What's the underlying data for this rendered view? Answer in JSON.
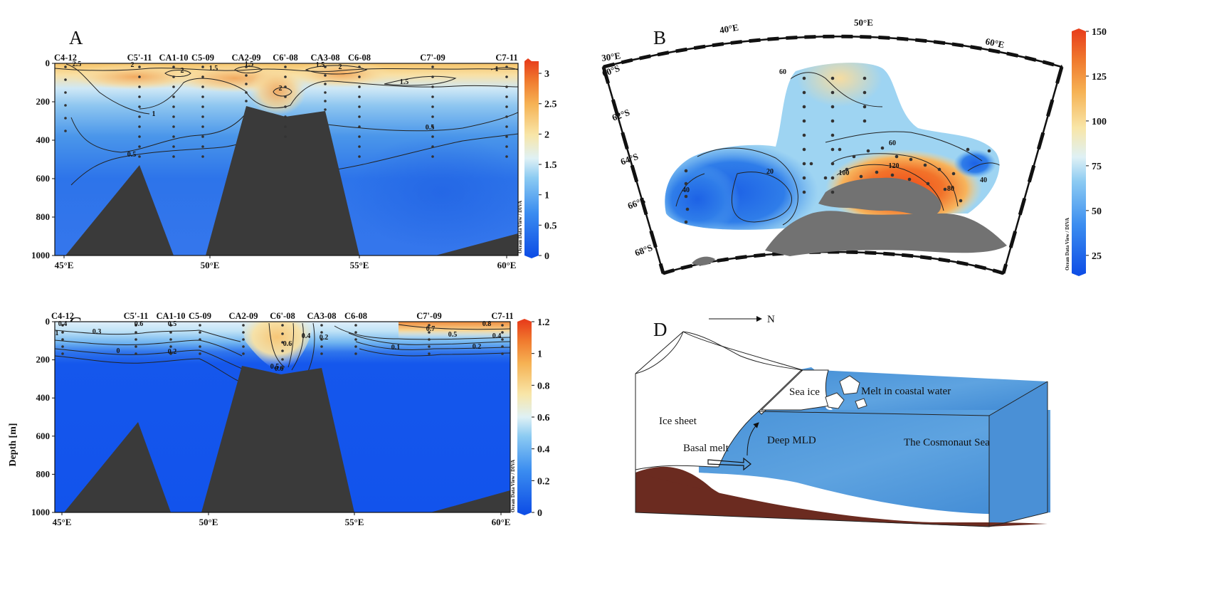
{
  "panels": {
    "a": {
      "label": "A"
    },
    "b": {
      "label": "B"
    },
    "c": {
      "label": "C"
    },
    "d": {
      "label": "D"
    }
  },
  "chart_data": [
    {
      "id": "A",
      "type": "heatmap",
      "title": "",
      "stations": [
        "C4-12",
        "C5'-11",
        "CA1-10",
        "C5-09",
        "CA2-09",
        "C6'-08",
        "CA3-08",
        "C6-08",
        "C7'-09",
        "C7-11"
      ],
      "x_ticks": [
        "45°E",
        "50°E",
        "55°E",
        "60°E"
      ],
      "y_ticks": [
        "0",
        "200",
        "400",
        "600",
        "800",
        "1000"
      ],
      "ylim": [
        1000,
        0
      ],
      "contour_labels": [
        "2.5",
        "2",
        "2",
        "2",
        "1.5",
        "1.5",
        "1.5",
        "1.5",
        "1",
        "1",
        "0.5",
        "0.5",
        "2"
      ],
      "colorbar": {
        "ticks": [
          "3",
          "2.5",
          "2",
          "1.5",
          "1",
          "0.5",
          "0"
        ],
        "range": [
          0,
          3.2
        ],
        "credit": "Ocean Data View / DIVA"
      }
    },
    {
      "id": "B",
      "type": "heatmap",
      "title": "",
      "lon_ticks": [
        "30°E",
        "40°E",
        "50°E",
        "60°E"
      ],
      "lat_ticks": [
        "60°S",
        "62°S",
        "64°S",
        "66°S",
        "68°S"
      ],
      "contour_labels": [
        "60",
        "60",
        "20",
        "40",
        "100",
        "120",
        "80",
        "40"
      ],
      "colorbar": {
        "ticks": [
          "150",
          "125",
          "100",
          "75",
          "50",
          "25"
        ],
        "range": [
          15,
          150
        ],
        "credit": "Ocean Data View / DIVA"
      }
    },
    {
      "id": "C",
      "type": "heatmap",
      "title": "",
      "ylabel": "Depth [m]",
      "stations": [
        "C4-12",
        "C5'-11",
        "CA1-10",
        "C5-09",
        "CA2-09",
        "C6'-08",
        "CA3-08",
        "C6-08",
        "C7'-09",
        "C7-11"
      ],
      "x_ticks": [
        "45°E",
        "50°E",
        "55°E",
        "60°E"
      ],
      "y_ticks": [
        "0",
        "200",
        "400",
        "600",
        "800",
        "1000"
      ],
      "ylim": [
        1000,
        0
      ],
      "contour_labels": [
        "0.4",
        "1",
        "0.3",
        "0.6",
        "0.5",
        "0.2",
        "0",
        "0.6",
        "0.5",
        "0.4",
        "0.2",
        "0.1",
        "0.7",
        "0.8",
        "0.5",
        "0.4",
        "0.2",
        "0.6"
      ],
      "colorbar": {
        "ticks": [
          "1.2",
          "1",
          "0.8",
          "0.6",
          "0.4",
          "0.2",
          "0"
        ],
        "range": [
          0,
          1.2
        ],
        "credit": "Ocean Data View / DIVA"
      }
    }
  ],
  "schematic": {
    "north_label": "N",
    "labels": {
      "sea_ice": "Sea ice",
      "melt": "Melt in coastal water",
      "ice_sheet": "Ice sheet",
      "basal_melt": "Basal melt",
      "deep_mld": "Deep MLD",
      "sea": "The Cosmonaut Sea"
    }
  }
}
